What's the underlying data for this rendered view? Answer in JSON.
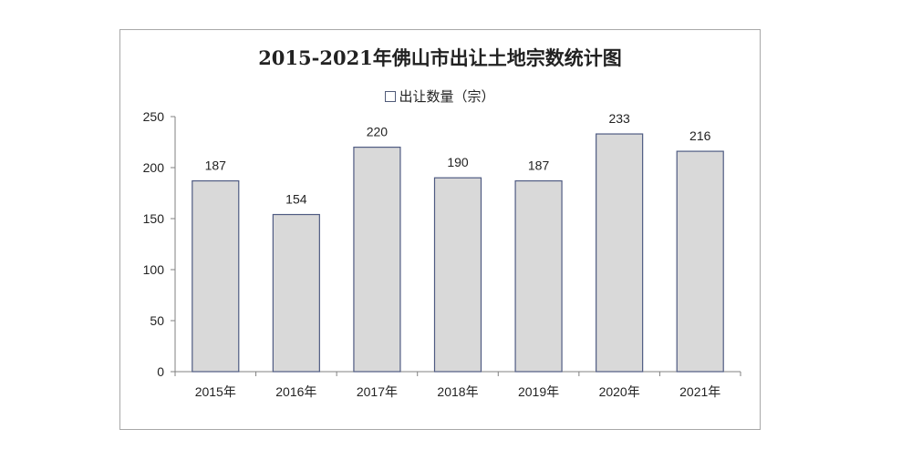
{
  "chart_data": {
    "type": "bar",
    "title": "2015-2021年佛山市出让土地宗数统计图",
    "categories": [
      "2015年",
      "2016年",
      "2017年",
      "2018年",
      "2019年",
      "2020年",
      "2021年"
    ],
    "series": [
      {
        "name": "出让数量（宗）",
        "values": [
          187,
          154,
          220,
          190,
          187,
          233,
          216
        ]
      }
    ],
    "ylim": [
      0,
      250
    ],
    "yticks": [
      0,
      50,
      100,
      150,
      200,
      250
    ],
    "grid": false,
    "legend_position": "top",
    "colors": {
      "bar_fill": "#d9d9d9",
      "bar_stroke": "#4f5b82",
      "axis": "#808080"
    }
  }
}
